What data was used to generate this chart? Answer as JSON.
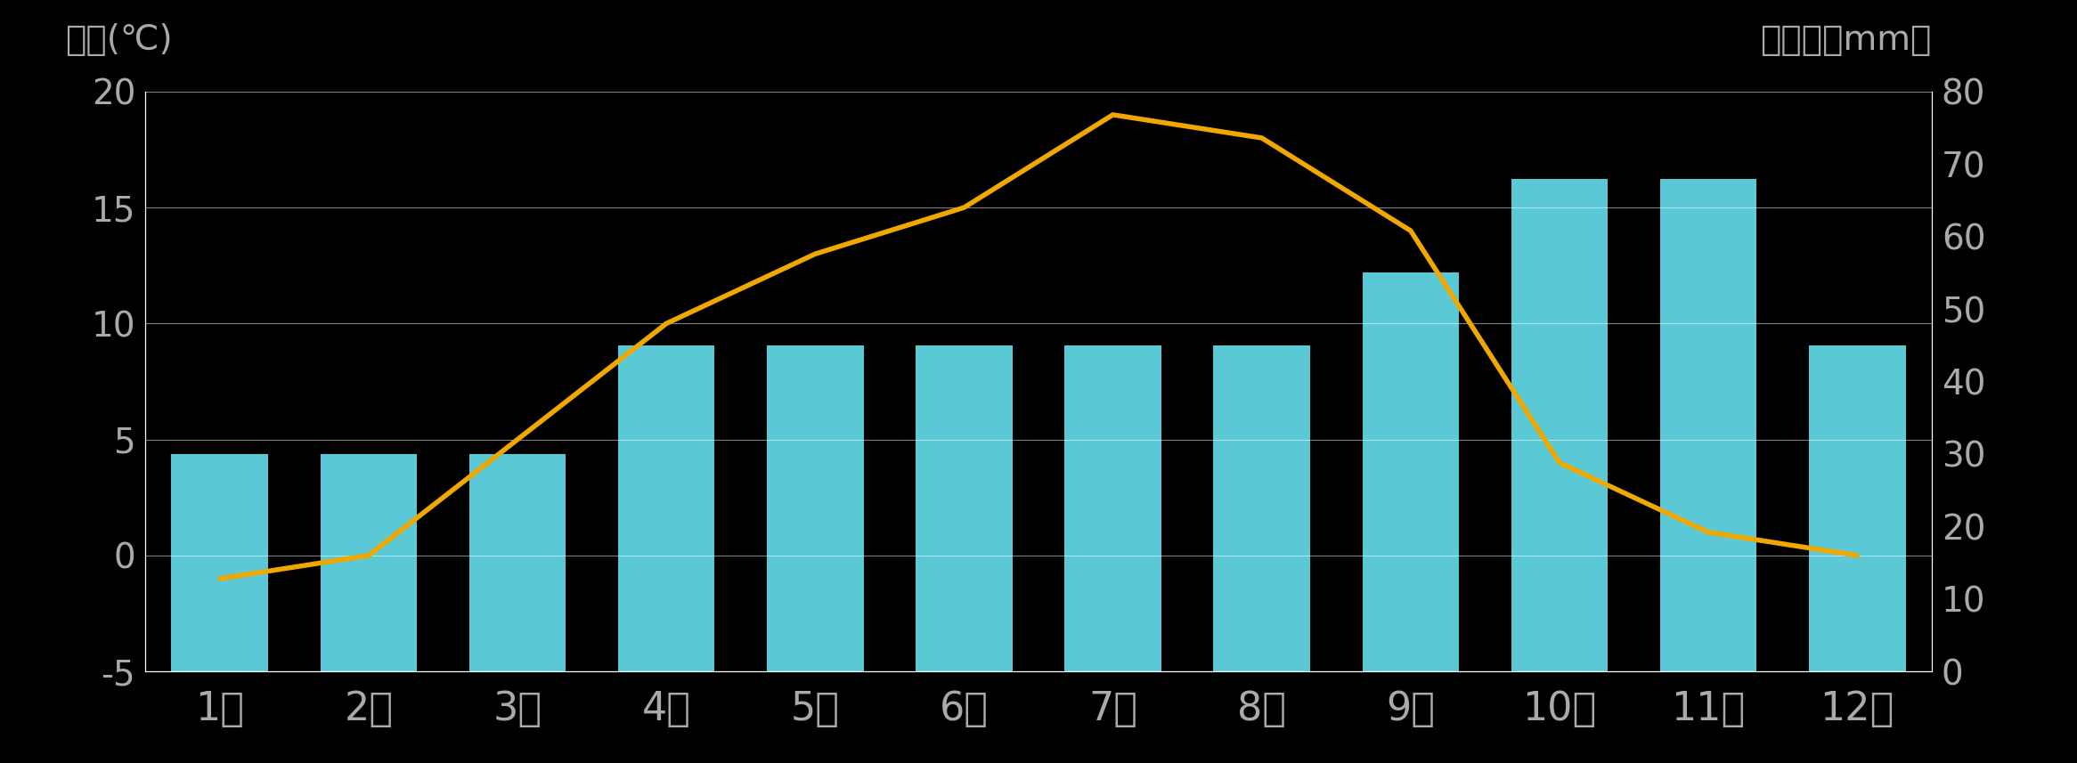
{
  "months": [
    "\u00001月",
    "\u00002月",
    "\u00003月",
    "\u00004月",
    "\u00005月",
    "\u00006月",
    "\u00007月",
    "\u00008月",
    "\u00009月",
    "10月",
    "11月",
    "12月"
  ],
  "precipitation": [
    30,
    30,
    30,
    45,
    45,
    45,
    45,
    45,
    55,
    68,
    68,
    45
  ],
  "temperature": [
    -1,
    0,
    5,
    10,
    13,
    15,
    19,
    18,
    14,
    4,
    1,
    0
  ],
  "bar_color": "#5bc8d5",
  "line_color": "#f0a800",
  "background_color": "#000000",
  "text_color": "#aaaaaa",
  "grid_color": "#ffffff",
  "left_ylabel": "気温(℃)",
  "right_ylabel": "降水量（mm）",
  "left_ylim": [
    -5,
    20
  ],
  "right_ylim": [
    0,
    80
  ],
  "left_yticks": [
    -5,
    0,
    5,
    10,
    15,
    20
  ],
  "right_yticks": [
    0,
    10,
    20,
    30,
    40,
    50,
    60,
    70,
    80
  ],
  "line_width": 4.0,
  "bar_width": 0.65
}
